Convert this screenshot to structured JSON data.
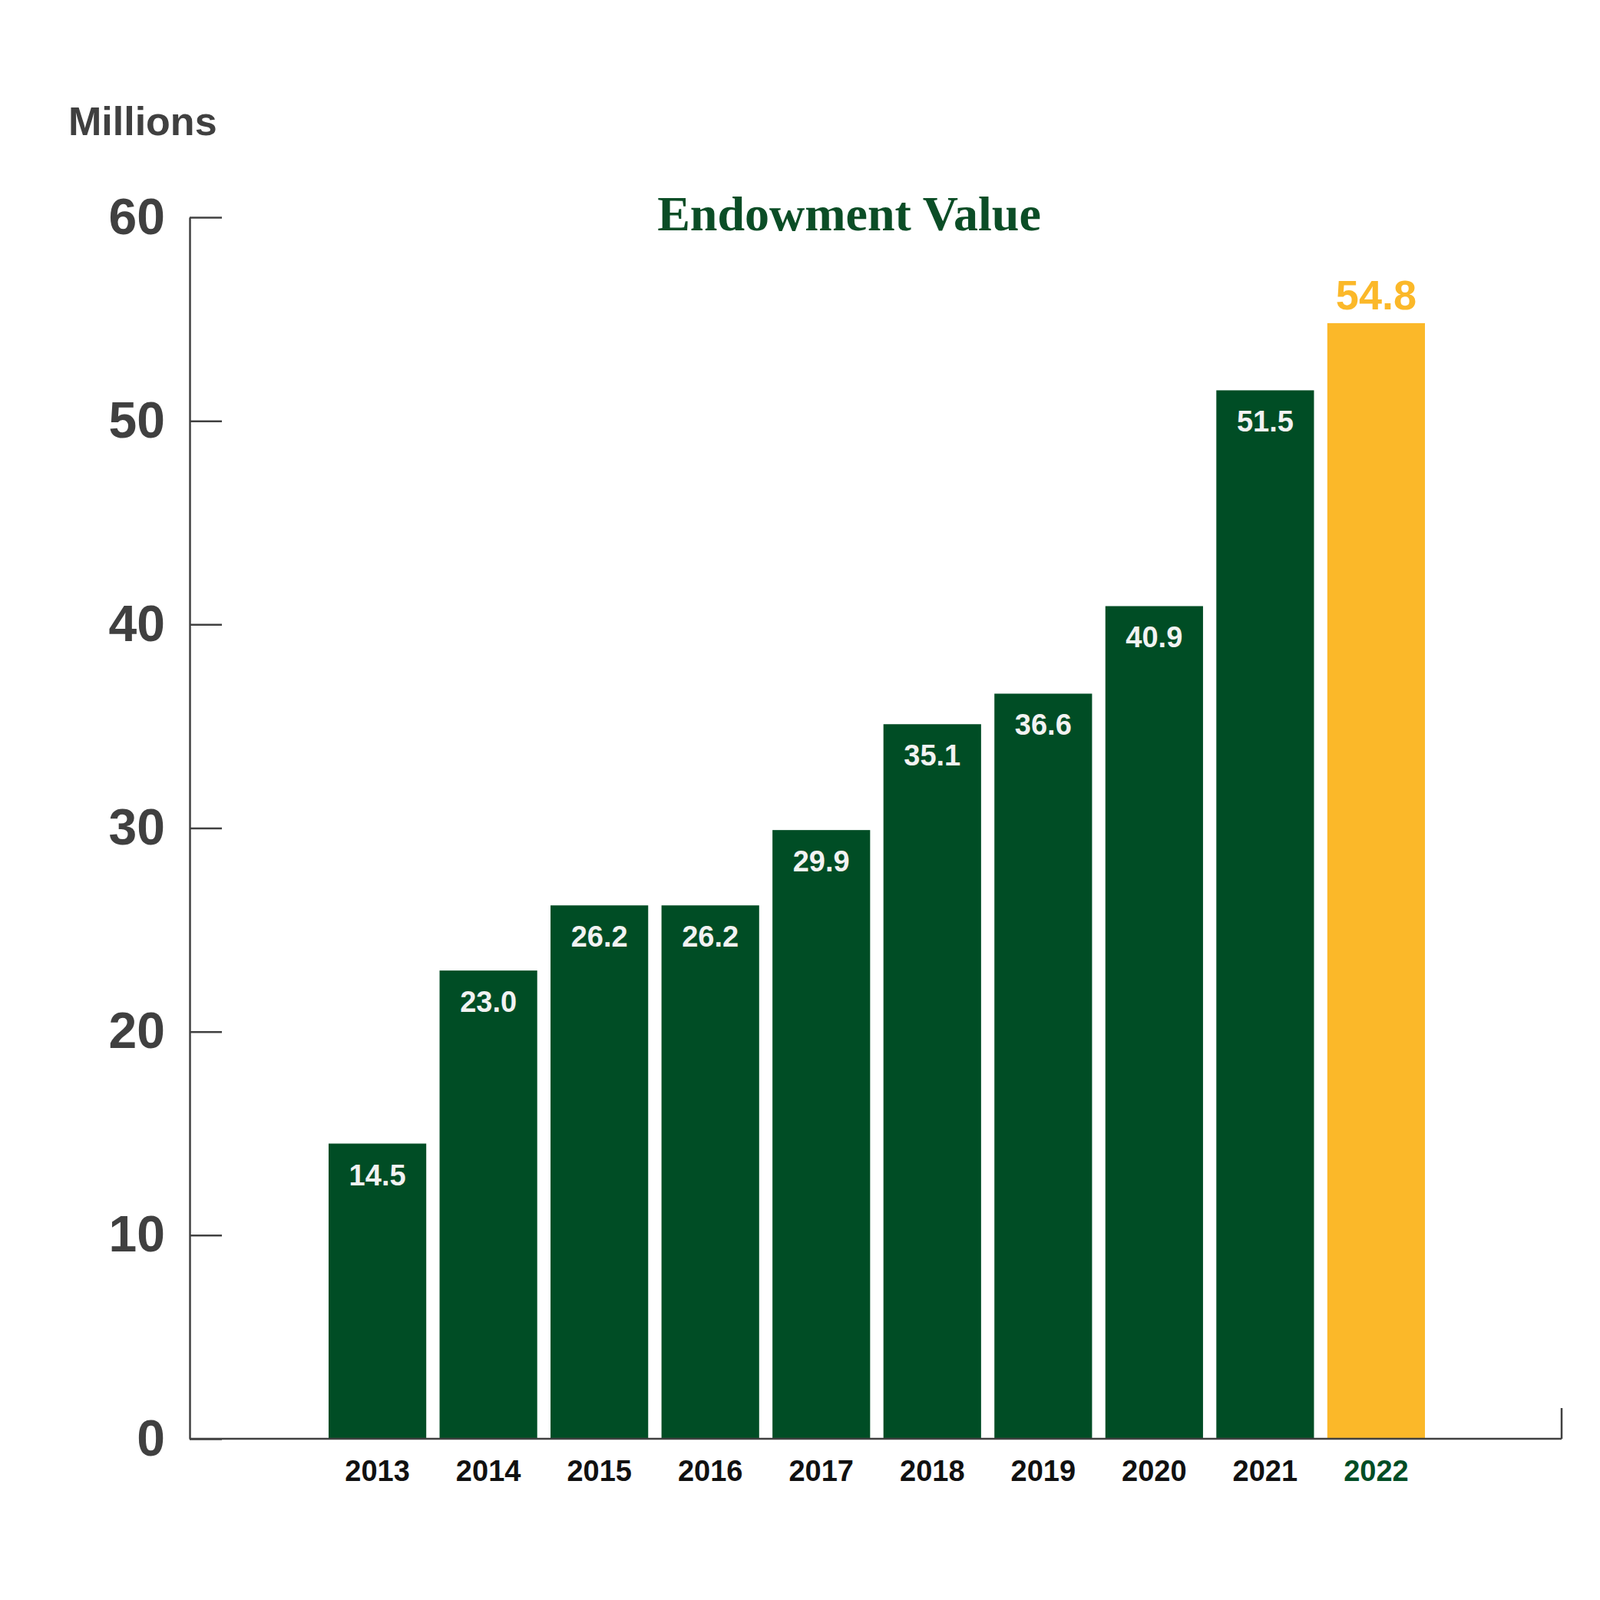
{
  "chart_data": {
    "type": "bar",
    "title": "Endowment Value",
    "y_label": "Millions",
    "categories": [
      "2013",
      "2014",
      "2015",
      "2016",
      "2017",
      "2018",
      "2019",
      "2020",
      "2021",
      "2022"
    ],
    "values": [
      14.5,
      23.0,
      26.2,
      26.2,
      29.9,
      35.1,
      36.6,
      40.9,
      51.5,
      54.8
    ],
    "value_labels": [
      "14.5",
      "23.0",
      "26.2",
      "26.2",
      "29.9",
      "35.1",
      "36.6",
      "40.9",
      "51.5",
      "54.8"
    ],
    "colors": [
      "#004d25",
      "#004d25",
      "#004d25",
      "#004d25",
      "#004d25",
      "#004d25",
      "#004d25",
      "#004d25",
      "#004d25",
      "#fbb829"
    ],
    "ylim": [
      0,
      60
    ],
    "yticks": [
      0,
      10,
      20,
      30,
      40,
      50,
      60
    ],
    "grid": false,
    "data_labels": true
  }
}
